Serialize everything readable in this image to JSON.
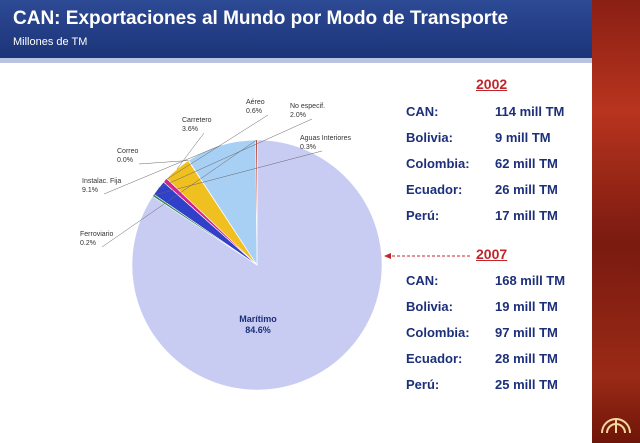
{
  "header": {
    "title": "CAN: Exportaciones al Mundo por Modo de Transporte",
    "subtitle": "Millones de TM"
  },
  "chart_data": {
    "type": "pie",
    "title": "CAN: Exportaciones al Mundo por Modo de Transporte",
    "subtitle": "Millones de TM",
    "slices": [
      {
        "label": "Marítimo",
        "value_label": "84.6%",
        "value": 84.6,
        "color": "#c8ccf2"
      },
      {
        "label": "Aguas Interiores",
        "value_label": "0.3%",
        "value": 0.3,
        "color": "#2e8b57"
      },
      {
        "label": "No especif.",
        "value_label": "2.0%",
        "value": 2.0,
        "color": "#3040c8"
      },
      {
        "label": "Aéreo",
        "value_label": "0.6%",
        "value": 0.6,
        "color": "#d6248a"
      },
      {
        "label": "Carretero",
        "value_label": "3.6%",
        "value": 3.6,
        "color": "#f0c020"
      },
      {
        "label": "Correo",
        "value_label": "0.0%",
        "value": 0.0,
        "color": "#888888"
      },
      {
        "label": "Instalac. Fija",
        "value_label": "9.1%",
        "value": 9.1,
        "color": "#a8d0f5"
      },
      {
        "label": "Ferroviario",
        "value_label": "0.2%",
        "value": 0.2,
        "color": "#b03020"
      }
    ]
  },
  "stats": {
    "2002": {
      "year": "2002",
      "rows": [
        {
          "label": "CAN:",
          "value": "114 mill TM"
        },
        {
          "label": "Bolivia:",
          "value": "9 mill TM"
        },
        {
          "label": "Colombia:",
          "value": "62 mill TM"
        },
        {
          "label": "Ecuador:",
          "value": "26 mill TM"
        },
        {
          "label": "Perú:",
          "value": "17 mill TM"
        }
      ]
    },
    "2007": {
      "year": "2007",
      "rows": [
        {
          "label": "CAN:",
          "value": "168 mill TM"
        },
        {
          "label": "Bolivia:",
          "value": "19 mill TM"
        },
        {
          "label": "Colombia:",
          "value": "97 mill TM"
        },
        {
          "label": "Ecuador:",
          "value": "28 mill TM"
        },
        {
          "label": "Perú:",
          "value": "25 mill TM"
        }
      ]
    }
  },
  "colors": {
    "header_bg": "#1c3478",
    "stat_text": "#1c2f7a",
    "year_text": "#c0262b",
    "arrow": "#c0262b"
  }
}
